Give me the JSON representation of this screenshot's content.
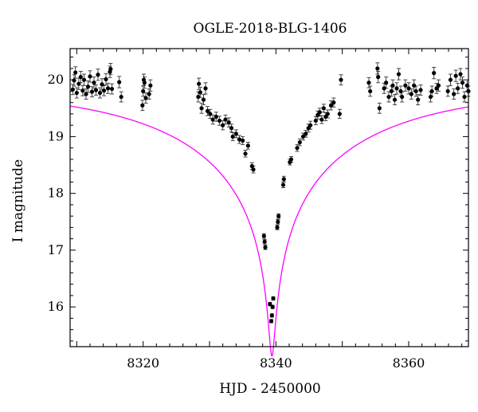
{
  "chart_data": {
    "type": "scatter",
    "title": "OGLE-2018-BLG-1406",
    "xlabel": "HJD - 2450000",
    "ylabel": "I magnitude",
    "xlim": [
      8309,
      8369
    ],
    "ylim": [
      20.55,
      15.3
    ],
    "y_inverted": true,
    "x_ticks": [
      8320,
      8340,
      8360
    ],
    "y_ticks": [
      16,
      17,
      18,
      19,
      20
    ],
    "grid": false,
    "colors": {
      "points": "#000000",
      "model": "#ff00ff",
      "axes": "#000000"
    },
    "series": [
      {
        "kind": "points_with_errorbars",
        "points": [
          [
            8309.4,
            19.83,
            0.09
          ],
          [
            8309.6,
            19.99,
            0.1
          ],
          [
            8309.8,
            20.13,
            0.1
          ],
          [
            8310.0,
            19.77,
            0.09
          ],
          [
            8310.3,
            19.93,
            0.1
          ],
          [
            8310.6,
            20.05,
            0.1
          ],
          [
            8310.9,
            19.81,
            0.09
          ],
          [
            8311.1,
            20.0,
            0.1
          ],
          [
            8311.4,
            19.75,
            0.09
          ],
          [
            8311.7,
            19.88,
            0.1
          ],
          [
            8312.0,
            20.06,
            0.1
          ],
          [
            8312.3,
            19.79,
            0.09
          ],
          [
            8312.6,
            19.95,
            0.1
          ],
          [
            8312.9,
            19.82,
            0.09
          ],
          [
            8313.2,
            20.09,
            0.1
          ],
          [
            8313.5,
            19.77,
            0.09
          ],
          [
            8313.8,
            19.92,
            0.1
          ],
          [
            8314.1,
            19.81,
            0.09
          ],
          [
            8314.4,
            20.01,
            0.1
          ],
          [
            8314.7,
            19.85,
            0.09
          ],
          [
            8315.0,
            20.14,
            0.1
          ],
          [
            8315.1,
            20.19,
            0.1
          ],
          [
            8315.3,
            19.84,
            0.09
          ],
          [
            8316.4,
            19.96,
            0.1
          ],
          [
            8316.7,
            19.7,
            0.09
          ],
          [
            8319.9,
            19.55,
            0.09
          ],
          [
            8320.0,
            19.8,
            0.09
          ],
          [
            8320.1,
            20.0,
            0.1
          ],
          [
            8320.2,
            19.95,
            0.1
          ],
          [
            8320.4,
            19.68,
            0.09
          ],
          [
            8320.9,
            19.75,
            0.09
          ],
          [
            8321.1,
            19.9,
            0.1
          ],
          [
            8328.3,
            19.7,
            0.09
          ],
          [
            8328.4,
            19.93,
            0.1
          ],
          [
            8328.6,
            19.78,
            0.09
          ],
          [
            8328.8,
            19.5,
            0.09
          ],
          [
            8329.1,
            19.65,
            0.09
          ],
          [
            8329.4,
            19.85,
            0.1
          ],
          [
            8329.7,
            19.45,
            0.08
          ],
          [
            8330.1,
            19.4,
            0.08
          ],
          [
            8330.5,
            19.3,
            0.08
          ],
          [
            8331.0,
            19.35,
            0.08
          ],
          [
            8331.5,
            19.28,
            0.08
          ],
          [
            8332.0,
            19.2,
            0.08
          ],
          [
            8332.4,
            19.3,
            0.08
          ],
          [
            8332.9,
            19.25,
            0.08
          ],
          [
            8333.3,
            19.15,
            0.07
          ],
          [
            8333.5,
            19.0,
            0.07
          ],
          [
            8334.0,
            19.05,
            0.07
          ],
          [
            8334.5,
            18.95,
            0.07
          ],
          [
            8335.0,
            18.93,
            0.07
          ],
          [
            8335.4,
            18.7,
            0.06
          ],
          [
            8335.8,
            18.84,
            0.06
          ],
          [
            8336.4,
            18.48,
            0.06
          ],
          [
            8336.6,
            18.42,
            0.06
          ],
          [
            8338.2,
            17.25,
            0.04
          ],
          [
            8338.3,
            17.15,
            0.04
          ],
          [
            8338.4,
            17.05,
            0.04
          ],
          [
            8339.1,
            16.05,
            0.03
          ],
          [
            8339.3,
            15.75,
            0.03
          ],
          [
            8339.4,
            15.85,
            0.03
          ],
          [
            8339.5,
            16.0,
            0.03
          ],
          [
            8339.6,
            16.15,
            0.03
          ],
          [
            8340.2,
            17.4,
            0.04
          ],
          [
            8340.3,
            17.5,
            0.04
          ],
          [
            8340.4,
            17.6,
            0.04
          ],
          [
            8341.1,
            18.15,
            0.05
          ],
          [
            8341.2,
            18.25,
            0.05
          ],
          [
            8342.1,
            18.55,
            0.05
          ],
          [
            8342.3,
            18.6,
            0.05
          ],
          [
            8343.2,
            18.8,
            0.06
          ],
          [
            8343.6,
            18.9,
            0.06
          ],
          [
            8344.1,
            19.0,
            0.06
          ],
          [
            8344.5,
            19.05,
            0.06
          ],
          [
            8344.9,
            19.15,
            0.07
          ],
          [
            8345.2,
            19.2,
            0.07
          ],
          [
            8346.0,
            19.28,
            0.07
          ],
          [
            8346.3,
            19.38,
            0.07
          ],
          [
            8346.6,
            19.43,
            0.07
          ],
          [
            8346.9,
            19.3,
            0.07
          ],
          [
            8347.2,
            19.5,
            0.07
          ],
          [
            8347.5,
            19.35,
            0.07
          ],
          [
            8347.8,
            19.4,
            0.07
          ],
          [
            8348.3,
            19.55,
            0.08
          ],
          [
            8348.7,
            19.6,
            0.08
          ],
          [
            8349.6,
            19.4,
            0.08
          ],
          [
            8349.8,
            20.0,
            0.09
          ],
          [
            8354.0,
            19.95,
            0.09
          ],
          [
            8354.2,
            19.8,
            0.09
          ],
          [
            8355.3,
            20.2,
            0.1
          ],
          [
            8355.4,
            20.05,
            0.1
          ],
          [
            8355.6,
            19.5,
            0.09
          ],
          [
            8356.3,
            19.85,
            0.09
          ],
          [
            8356.6,
            19.95,
            0.1
          ],
          [
            8357.0,
            19.7,
            0.09
          ],
          [
            8357.4,
            19.8,
            0.09
          ],
          [
            8357.6,
            19.9,
            0.1
          ],
          [
            8357.9,
            19.65,
            0.09
          ],
          [
            8358.2,
            19.85,
            0.1
          ],
          [
            8358.5,
            20.1,
            0.1
          ],
          [
            8358.8,
            19.8,
            0.09
          ],
          [
            8359.0,
            19.7,
            0.09
          ],
          [
            8359.5,
            19.9,
            0.1
          ],
          [
            8360.0,
            19.85,
            0.1
          ],
          [
            8360.4,
            19.75,
            0.09
          ],
          [
            8360.8,
            19.9,
            0.1
          ],
          [
            8361.1,
            19.8,
            0.09
          ],
          [
            8361.4,
            19.65,
            0.09
          ],
          [
            8361.8,
            19.82,
            0.09
          ],
          [
            8363.3,
            19.7,
            0.09
          ],
          [
            8363.5,
            19.8,
            0.09
          ],
          [
            8363.8,
            20.12,
            0.1
          ],
          [
            8364.2,
            19.85,
            0.09
          ],
          [
            8364.5,
            19.9,
            0.1
          ],
          [
            8365.9,
            19.8,
            0.09
          ],
          [
            8366.3,
            20.0,
            0.1
          ],
          [
            8366.8,
            19.75,
            0.09
          ],
          [
            8367.1,
            20.07,
            0.1
          ],
          [
            8367.4,
            19.85,
            0.09
          ],
          [
            8367.8,
            20.1,
            0.1
          ],
          [
            8368.1,
            19.95,
            0.1
          ],
          [
            8368.4,
            19.7,
            0.09
          ],
          [
            8368.8,
            19.9,
            0.1
          ],
          [
            8369.0,
            19.8,
            0.09
          ]
        ]
      },
      {
        "kind": "model_curve",
        "model": {
          "t0": 8339.4,
          "u0": 0.013,
          "tE": 30.0,
          "m_base": 19.85
        }
      }
    ]
  }
}
